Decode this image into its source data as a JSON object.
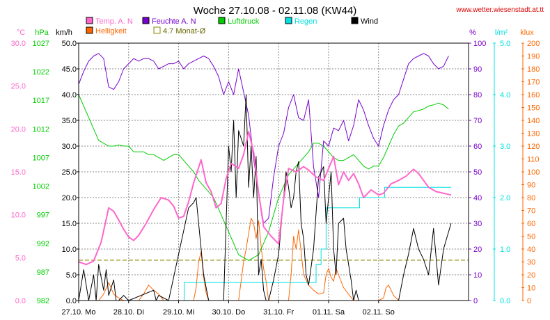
{
  "title": "Woche 27.10.08 - 02.11.08 (KW44)",
  "source": "www.wetter.wiesenstadt.at.tt",
  "colors": {
    "temp": "#ff66cc",
    "bright": "#ff6600",
    "hum": "#7700cc",
    "press": "#00cc00",
    "rain": "#00e0e0",
    "wind": "#000000",
    "avg": "#888800",
    "grid": "#888888",
    "frame": "#000000"
  },
  "units": {
    "temp": "°C",
    "press": "hPa",
    "wind": "km/h",
    "hum": "%",
    "rain": "l/m²",
    "bright": "klux"
  },
  "legend": [
    {
      "label": "Temp. A. N",
      "color": "#ff66cc",
      "filled": true
    },
    {
      "label": "Feuchte A. N",
      "color": "#7700cc",
      "filled": true
    },
    {
      "label": "Luftdruck",
      "color": "#00cc00",
      "filled": true
    },
    {
      "label": "Regen",
      "color": "#00e0e0",
      "filled": true
    },
    {
      "label": "Wind",
      "color": "#000000",
      "filled": true
    },
    {
      "label": "Helligkeit",
      "color": "#ff6600",
      "filled": true
    },
    {
      "label": "4.7 Monat-Ø",
      "color": "#888800",
      "filled": false
    }
  ],
  "chart_data": {
    "type": "line",
    "x_unit": "days since 27.10. 00:00",
    "x_range": [
      0,
      7.8
    ],
    "x_ticks": [
      {
        "x": 0,
        "label": "27.10. Mo"
      },
      {
        "x": 1,
        "label": "28.10. Di"
      },
      {
        "x": 2,
        "label": "29.10. Mi"
      },
      {
        "x": 3,
        "label": "30.10. Do"
      },
      {
        "x": 4,
        "label": "31.10. Fr"
      },
      {
        "x": 5,
        "label": "01.11. Sa"
      },
      {
        "x": 6,
        "label": "02.11. So"
      }
    ],
    "axes": {
      "temp": {
        "min": 0,
        "max": 30,
        "ticks": [
          "0.0",
          "5.0",
          "10.0",
          "15.0",
          "20.0",
          "25.0",
          "30.0"
        ]
      },
      "press": {
        "min": 982,
        "max": 1027,
        "ticks": [
          "982",
          "987",
          "992",
          "997",
          "1002",
          "1007",
          "1012",
          "1017",
          "1022",
          "1027"
        ]
      },
      "wind": {
        "min": 0,
        "max": 50,
        "ticks": [
          "0.0",
          "5.0",
          "10.0",
          "15.0",
          "20.0",
          "25.0",
          "30.0",
          "35.0",
          "40.0",
          "45.0",
          "50.0"
        ]
      },
      "hum": {
        "min": 0,
        "max": 100,
        "ticks": [
          "0",
          "10",
          "20",
          "30",
          "40",
          "50",
          "60",
          "70",
          "80",
          "90",
          "100"
        ]
      },
      "rain": {
        "min": 0,
        "max": 5,
        "ticks": [
          "0.0",
          "1.0",
          "2.0",
          "3.0",
          "4.0",
          "5.0"
        ]
      },
      "bright": {
        "min": 0,
        "max": 200,
        "ticks": [
          "0",
          "10",
          "20",
          "30",
          "40",
          "50",
          "60",
          "70",
          "80",
          "90",
          "100",
          "110",
          "120",
          "130",
          "140",
          "150",
          "160",
          "170",
          "180",
          "190",
          "200"
        ]
      }
    },
    "monthly_avg_temp": 4.7,
    "series": [
      {
        "name": "Temp. A. N",
        "axis": "temp",
        "color": "#ff66cc",
        "width": 2,
        "x": [
          0,
          0.15,
          0.3,
          0.45,
          0.6,
          0.7,
          0.8,
          0.9,
          1.0,
          1.1,
          1.2,
          1.35,
          1.5,
          1.65,
          1.8,
          1.9,
          2.0,
          2.1,
          2.2,
          2.3,
          2.45,
          2.55,
          2.65,
          2.75,
          2.85,
          2.95,
          3.05,
          3.2,
          3.3,
          3.4,
          3.5,
          3.6,
          3.7,
          3.85,
          4.0,
          4.1,
          4.2,
          4.35,
          4.5,
          4.6,
          4.75,
          4.9,
          5.0,
          5.1,
          5.2,
          5.3,
          5.4,
          5.5,
          5.6,
          5.7,
          5.85,
          6.0,
          6.1,
          6.25,
          6.4,
          6.55,
          6.7,
          6.8,
          6.9,
          7.0,
          7.15,
          7.3,
          7.45
        ],
        "y": [
          4.5,
          4.2,
          4.6,
          6.8,
          10.8,
          10.4,
          9.4,
          8.3,
          7.4,
          7.0,
          7.6,
          9.0,
          10.6,
          12.0,
          11.7,
          11.0,
          9.6,
          9.8,
          11.5,
          13.7,
          16.4,
          13.7,
          12.7,
          10.8,
          11.3,
          14.2,
          16.0,
          15.4,
          17.0,
          19.7,
          17.3,
          12.5,
          8.6,
          7.5,
          6.6,
          11.8,
          15.4,
          15.0,
          15.6,
          15.2,
          14.4,
          14.0,
          15.4,
          16.8,
          13.5,
          15.0,
          14.0,
          14.8,
          13.6,
          12.0,
          12.9,
          12.3,
          12.5,
          13.6,
          14.0,
          14.5,
          15.3,
          14.8,
          14.0,
          13.2,
          12.7,
          12.5,
          12.3
        ]
      },
      {
        "name": "Feuchte A. N",
        "axis": "hum",
        "color": "#7700cc",
        "width": 1,
        "x": [
          0,
          0.1,
          0.2,
          0.3,
          0.4,
          0.5,
          0.6,
          0.7,
          0.8,
          0.9,
          1.0,
          1.1,
          1.2,
          1.3,
          1.4,
          1.5,
          1.6,
          1.7,
          1.8,
          1.9,
          2.0,
          2.1,
          2.2,
          2.3,
          2.4,
          2.5,
          2.6,
          2.7,
          2.8,
          2.9,
          3.0,
          3.1,
          3.2,
          3.3,
          3.4,
          3.5,
          3.6,
          3.7,
          3.8,
          3.9,
          4.0,
          4.1,
          4.2,
          4.3,
          4.4,
          4.5,
          4.6,
          4.7,
          4.8,
          4.9,
          5.0,
          5.1,
          5.2,
          5.3,
          5.4,
          5.5,
          5.6,
          5.7,
          5.8,
          5.9,
          6.0,
          6.1,
          6.2,
          6.3,
          6.4,
          6.5,
          6.6,
          6.7,
          6.8,
          6.9,
          7.0,
          7.1,
          7.2,
          7.3,
          7.4
        ],
        "y": [
          84,
          89,
          93,
          95,
          96,
          94,
          83,
          82,
          85,
          90,
          92,
          94,
          93,
          94,
          94,
          93,
          90,
          91,
          92,
          92,
          93,
          90,
          92,
          93,
          94,
          95,
          94,
          91,
          87,
          80,
          85,
          80,
          90,
          81,
          72,
          55,
          42,
          30,
          32,
          48,
          60,
          65,
          75,
          80,
          71,
          70,
          78,
          52,
          40,
          62,
          60,
          67,
          66,
          70,
          62,
          68,
          78,
          74,
          68,
          63,
          60,
          68,
          74,
          78,
          80,
          86,
          92,
          94,
          95,
          96,
          95,
          92,
          90,
          91,
          95
        ]
      },
      {
        "name": "Luftdruck",
        "axis": "press",
        "color": "#00cc00",
        "width": 1,
        "x": [
          0,
          0.1,
          0.2,
          0.3,
          0.4,
          0.5,
          0.6,
          0.7,
          0.8,
          0.9,
          1.0,
          1.1,
          1.2,
          1.3,
          1.4,
          1.5,
          1.6,
          1.7,
          1.8,
          1.9,
          2.0,
          2.1,
          2.2,
          2.3,
          2.4,
          2.5,
          2.6,
          2.7,
          2.8,
          2.9,
          3.0,
          3.1,
          3.2,
          3.3,
          3.4,
          3.5,
          3.6,
          3.7,
          3.8,
          3.9,
          4.0,
          4.1,
          4.2,
          4.3,
          4.4,
          4.5,
          4.6,
          4.7,
          4.8,
          4.9,
          5.0,
          5.1,
          5.2,
          5.3,
          5.4,
          5.5,
          5.6,
          5.7,
          5.8,
          5.9,
          6.0,
          6.1,
          6.2,
          6.3,
          6.4,
          6.5,
          6.6,
          6.7,
          6.8,
          6.9,
          7.0,
          7.1,
          7.2,
          7.3,
          7.4
        ],
        "y": [
          1018,
          1016,
          1014,
          1012,
          1010,
          1009.5,
          1009,
          1009,
          1009.2,
          1009,
          1009,
          1008,
          1008,
          1008,
          1007.5,
          1007.5,
          1007,
          1006.5,
          1007,
          1007.5,
          1007.5,
          1006.5,
          1005.5,
          1004.5,
          1003,
          1002,
          1001,
          1000,
          998,
          996,
          994,
          992,
          990,
          989.5,
          989,
          989.5,
          990,
          992,
          994,
          997,
          1000,
          1002,
          1004,
          1005,
          1006,
          1007,
          1008,
          1009.5,
          1009.5,
          1009,
          1008,
          1007,
          1006.5,
          1006.5,
          1007,
          1007.5,
          1006.5,
          1005.5,
          1005,
          1005.5,
          1005.5,
          1007,
          1009,
          1011,
          1012.5,
          1013,
          1014,
          1015,
          1015.2,
          1015.5,
          1016,
          1016.2,
          1016.5,
          1016.2,
          1015.5
        ]
      },
      {
        "name": "Regen",
        "axis": "rain",
        "color": "#00e0e0",
        "width": 1,
        "step": true,
        "x": [
          0,
          2.1,
          2.11,
          4.65,
          4.75,
          4.85,
          4.95,
          5.6,
          5.62,
          6.1,
          6.12,
          6.25,
          7.45
        ],
        "y": [
          0,
          0,
          0.35,
          0.35,
          0.7,
          1.0,
          1.8,
          1.8,
          2.0,
          2.0,
          2.2,
          2.2,
          2.2
        ]
      },
      {
        "name": "Wind",
        "axis": "wind",
        "color": "#000000",
        "width": 1,
        "x": [
          0,
          0.1,
          0.15,
          0.2,
          0.3,
          0.35,
          0.4,
          0.5,
          0.55,
          0.6,
          0.7,
          0.75,
          0.8,
          0.9,
          1.0,
          1.5,
          1.55,
          1.6,
          1.8,
          2.2,
          2.3,
          2.35,
          2.4,
          2.5,
          2.6,
          2.7,
          2.8,
          2.9,
          3.0,
          3.05,
          3.1,
          3.15,
          3.2,
          3.3,
          3.35,
          3.4,
          3.45,
          3.5,
          3.55,
          3.6,
          3.65,
          3.7,
          3.75,
          3.8,
          3.9,
          4.0,
          4.1,
          4.15,
          4.2,
          4.25,
          4.3,
          4.35,
          4.4,
          4.45,
          4.5,
          4.55,
          4.6,
          4.7,
          4.8,
          4.85,
          4.9,
          4.95,
          5.0,
          5.05,
          5.1,
          5.15,
          5.2,
          5.3,
          5.35,
          5.4,
          5.45,
          5.5,
          5.55,
          5.6,
          5.7,
          6.4,
          6.5,
          6.6,
          6.7,
          6.8,
          6.9,
          7.0,
          7.1,
          7.2,
          7.3,
          7.45
        ],
        "y": [
          0,
          6,
          3,
          0,
          5,
          0,
          7,
          2,
          6,
          1,
          4,
          0,
          0,
          1,
          0,
          2,
          0,
          1,
          0,
          18,
          19,
          20,
          15,
          5,
          0,
          0,
          0,
          0,
          30,
          25,
          35,
          20,
          33,
          30,
          40,
          22,
          30,
          20,
          28,
          5,
          8,
          2,
          0,
          0,
          4,
          9,
          20,
          25,
          22,
          18,
          20,
          25,
          27,
          15,
          12,
          5,
          3,
          10,
          24,
          25,
          26,
          15,
          20,
          25,
          10,
          5,
          15,
          16,
          10,
          7,
          4,
          0,
          2,
          0,
          0,
          0,
          5,
          9,
          14,
          10,
          8,
          5,
          14,
          3,
          10,
          15
        ]
      },
      {
        "name": "Helligkeit",
        "axis": "bright",
        "color": "#ff6600",
        "width": 1,
        "x": [
          0,
          0.4,
          0.5,
          0.6,
          0.7,
          0.8,
          0.9,
          1.2,
          1.3,
          1.4,
          1.5,
          1.6,
          1.7,
          2.3,
          2.35,
          2.4,
          2.45,
          2.5,
          2.55,
          2.6,
          3.2,
          3.25,
          3.3,
          3.35,
          3.4,
          3.45,
          3.5,
          3.55,
          3.6,
          3.65,
          3.7,
          3.75,
          3.8,
          4.2,
          4.25,
          4.3,
          4.35,
          4.4,
          4.45,
          4.5,
          4.6,
          4.7,
          4.8,
          4.9,
          4.95,
          5.0,
          5.05,
          5.1,
          5.15,
          5.2,
          5.3,
          5.4,
          5.5,
          5.6,
          5.7,
          6.0,
          6.1,
          6.15,
          6.2,
          6.25,
          6.3,
          6.4,
          6.5,
          7.45
        ],
        "y": [
          0,
          0,
          5,
          14,
          5,
          2,
          0,
          0,
          5,
          12,
          8,
          5,
          0,
          0,
          10,
          30,
          38,
          18,
          6,
          0,
          0,
          15,
          30,
          40,
          52,
          64,
          60,
          48,
          62,
          42,
          25,
          15,
          0,
          0,
          20,
          50,
          40,
          55,
          38,
          20,
          12,
          8,
          5,
          6,
          20,
          25,
          18,
          15,
          25,
          20,
          10,
          5,
          0,
          0,
          0,
          0,
          2,
          10,
          12,
          8,
          4,
          0,
          0,
          0
        ]
      }
    ]
  }
}
